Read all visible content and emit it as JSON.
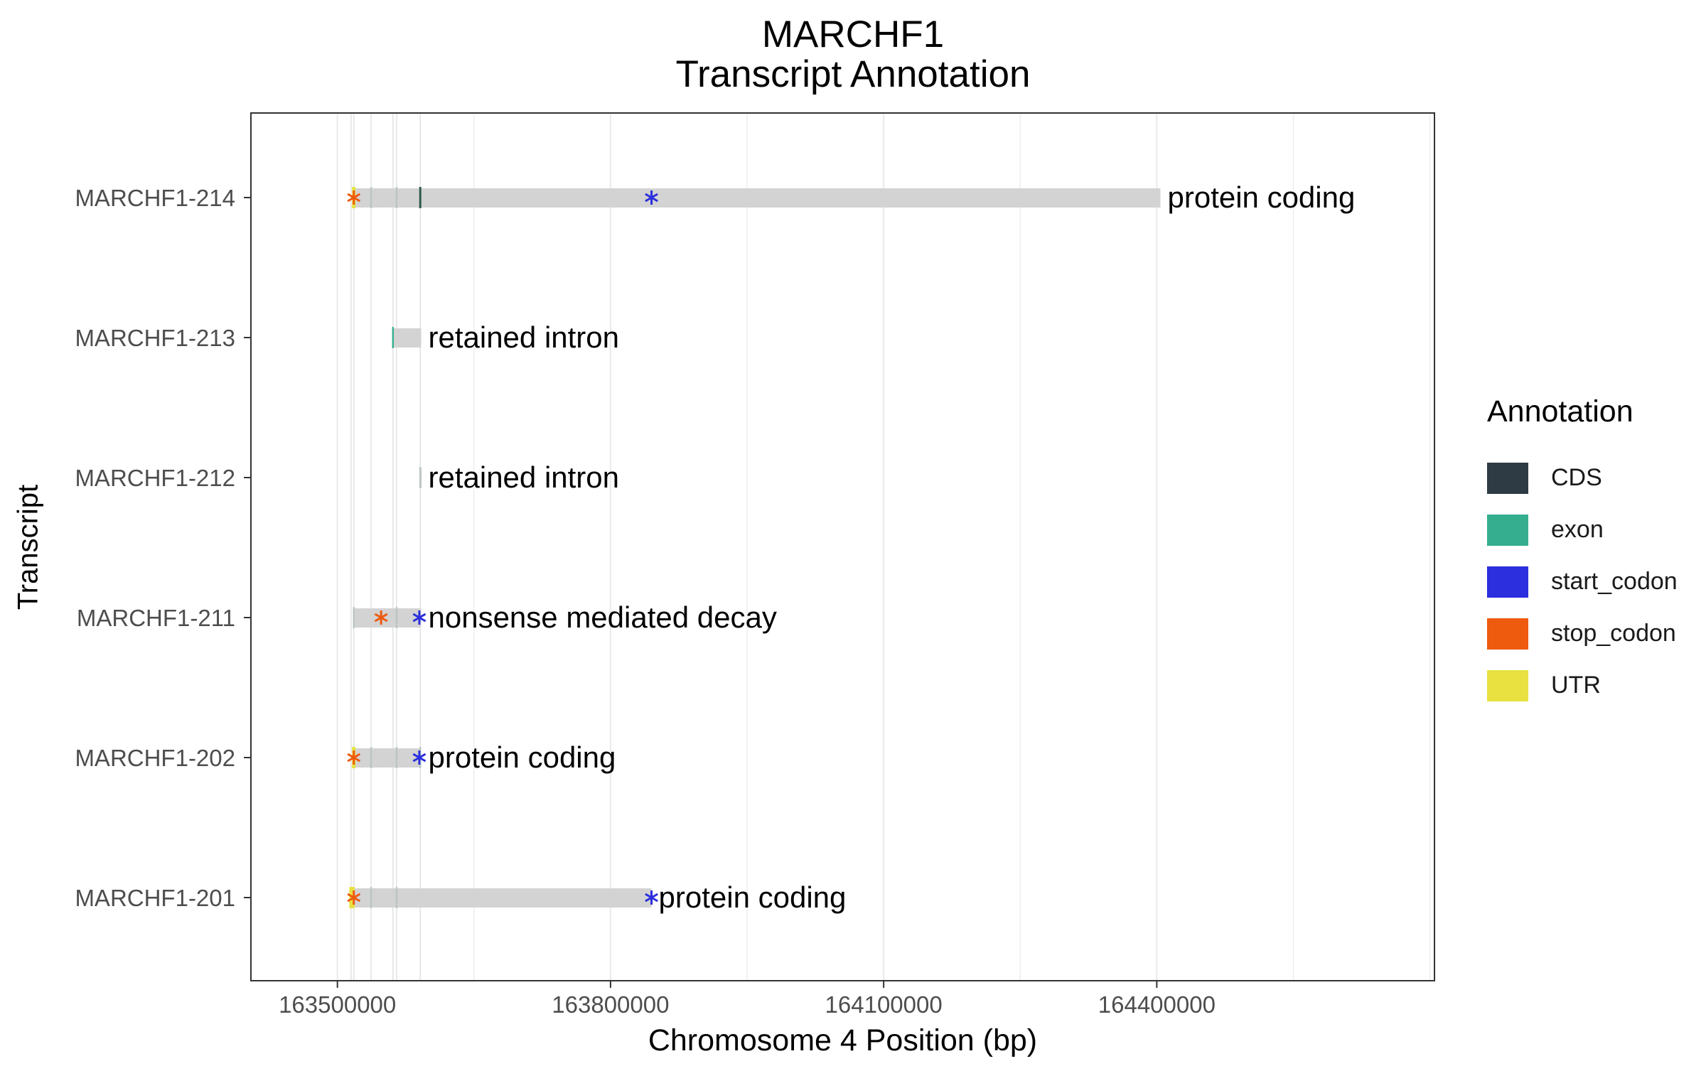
{
  "chart_data": {
    "type": "gantt-annotation",
    "title": "MARCHF1",
    "subtitle": "Transcript Annotation",
    "xlabel": "Chromosome 4 Position (bp)",
    "ylabel": "Transcript",
    "xlim": [
      163405000,
      164705000
    ],
    "x_ticks": [
      163500000,
      163800000,
      164100000,
      164400000
    ],
    "x_tick_labels": [
      "163500000",
      "163800000",
      "164100000",
      "164400000"
    ],
    "grid": true,
    "legend_position": "right",
    "legend": {
      "title": "Annotation",
      "entries": [
        {
          "name": "CDS",
          "color": "#2E3B44"
        },
        {
          "name": "exon",
          "color": "#35AE8E"
        },
        {
          "name": "start_codon",
          "color": "#2B2FDD"
        },
        {
          "name": "stop_codon",
          "color": "#EE5A0E"
        },
        {
          "name": "UTR",
          "color": "#E8E140"
        }
      ]
    },
    "transcripts": [
      {
        "name": "MARCHF1-214",
        "biotype": "protein coding",
        "start": 163518000,
        "end": 164404000,
        "exons": [
          163518000,
          163537000,
          163565000,
          163591000
        ],
        "cds": [
          163591000
        ],
        "utr": [
          163518000
        ],
        "start_codon": 163845000,
        "stop_codon": 163518000
      },
      {
        "name": "MARCHF1-213",
        "biotype": "retained intron",
        "start": 163561000,
        "end": 163592000,
        "exons": [
          163561000
        ],
        "cds": [],
        "utr": [],
        "start_codon": null,
        "stop_codon": null
      },
      {
        "name": "MARCHF1-212",
        "biotype": "retained intron",
        "start": 163591000,
        "end": 163592000,
        "exons": [
          163591000
        ],
        "cds": [],
        "utr": [],
        "start_codon": null,
        "stop_codon": null
      },
      {
        "name": "MARCHF1-211",
        "biotype": "nonsense mediated decay",
        "start": 163518000,
        "end": 163592000,
        "exons": [
          163518000,
          163565000
        ],
        "cds": [],
        "utr": [],
        "start_codon": 163590000,
        "stop_codon": 163548000
      },
      {
        "name": "MARCHF1-202",
        "biotype": "protein coding",
        "start": 163518000,
        "end": 163592000,
        "exons": [
          163518000,
          163537000,
          163565000,
          163591000
        ],
        "cds": [],
        "utr": [
          163518000
        ],
        "start_codon": 163590000,
        "stop_codon": 163518000
      },
      {
        "name": "MARCHF1-201",
        "biotype": "protein coding",
        "start": 163515000,
        "end": 163845000,
        "exons": [
          163515000,
          163537000,
          163565000
        ],
        "cds": [],
        "utr": [
          163515000,
          163517000
        ],
        "start_codon": 163845000,
        "stop_codon": 163518000
      }
    ]
  }
}
